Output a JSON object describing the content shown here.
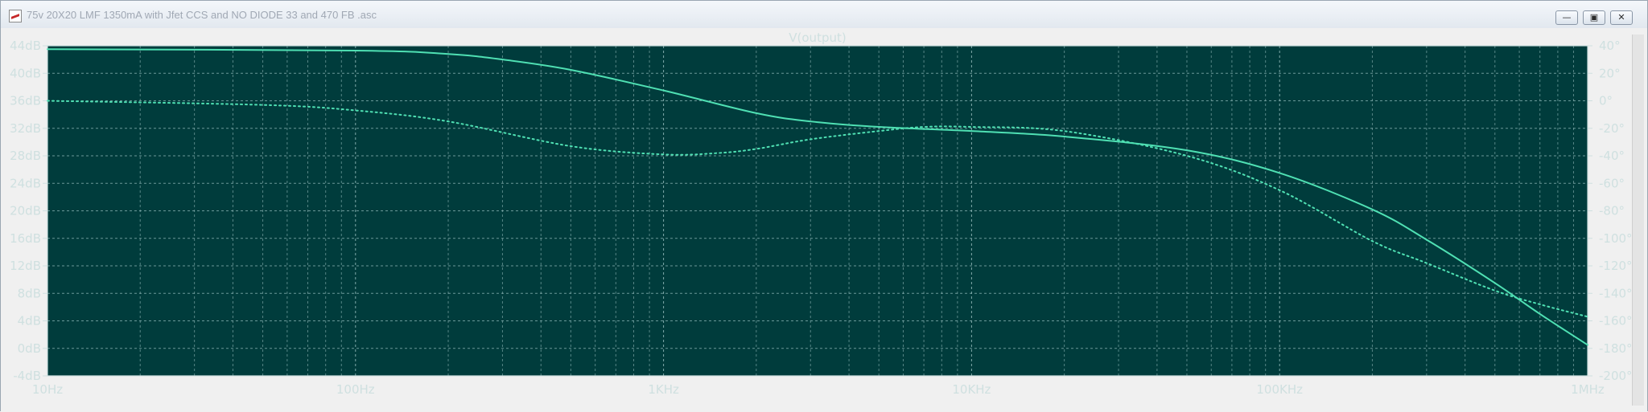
{
  "window": {
    "title": "75v 20X20 LMF 1350mA with Jfet CCS and NO DIODE 33 and 470 FB .asc",
    "buttons": {
      "minimize": "—",
      "restore": "▣",
      "close": "✕"
    }
  },
  "colors": {
    "plot_bg": "#003c3c",
    "grid": "#8fb7b7",
    "trace": "#4fe0b3",
    "text": "#cfe0e0"
  },
  "chart_data": {
    "type": "line",
    "title": "V(output)",
    "x_scale": "log",
    "xlim": [
      10,
      1000000
    ],
    "x_ticks": [
      {
        "value": 10,
        "label": "10Hz"
      },
      {
        "value": 100,
        "label": "100Hz"
      },
      {
        "value": 1000,
        "label": "1KHz"
      },
      {
        "value": 10000,
        "label": "10KHz"
      },
      {
        "value": 100000,
        "label": "100KHz"
      },
      {
        "value": 1000000,
        "label": "1MHz"
      }
    ],
    "y_left": {
      "ylim": [
        -4,
        44
      ],
      "ticks": [
        "44dB",
        "40dB",
        "36dB",
        "32dB",
        "28dB",
        "24dB",
        "20dB",
        "16dB",
        "12dB",
        "8dB",
        "4dB",
        "0dB",
        "-4dB"
      ],
      "values": [
        44,
        40,
        36,
        32,
        28,
        24,
        20,
        16,
        12,
        8,
        4,
        0,
        -4
      ]
    },
    "y_right": {
      "ylim": [
        -200,
        40
      ],
      "ticks": [
        "40°",
        "20°",
        "0°",
        "-20°",
        "-40°",
        "-60°",
        "-80°",
        "-100°",
        "-120°",
        "-140°",
        "-160°",
        "-180°",
        "-200°"
      ],
      "values": [
        40,
        20,
        0,
        -20,
        -40,
        -60,
        -80,
        -100,
        -120,
        -140,
        -160,
        -180,
        -200
      ]
    },
    "grid": true,
    "series": [
      {
        "style": "solid",
        "axis": "left",
        "x": [
          10,
          100,
          200,
          300,
          500,
          1000,
          2000,
          3000,
          5000,
          10000,
          20000,
          50000,
          100000,
          200000,
          300000,
          500000,
          700000,
          1000000
        ],
        "y": [
          43.5,
          43.3,
          42.8,
          42.0,
          40.5,
          37.5,
          34.2,
          33.0,
          32.2,
          31.6,
          30.8,
          28.8,
          25.5,
          20.2,
          15.8,
          9.5,
          5.0,
          0.5
        ]
      },
      {
        "style": "dotted",
        "axis": "right",
        "x": [
          10,
          50,
          100,
          200,
          500,
          1000,
          1500,
          2000,
          3000,
          5000,
          7000,
          10000,
          20000,
          50000,
          100000,
          200000,
          300000,
          500000,
          700000,
          1000000
        ],
        "y": [
          0,
          -3,
          -7,
          -15,
          -33,
          -39,
          -38,
          -35,
          -28,
          -22,
          -19,
          -19,
          -22,
          -40,
          -65,
          -102,
          -118,
          -138,
          -148,
          -157
        ]
      }
    ]
  }
}
